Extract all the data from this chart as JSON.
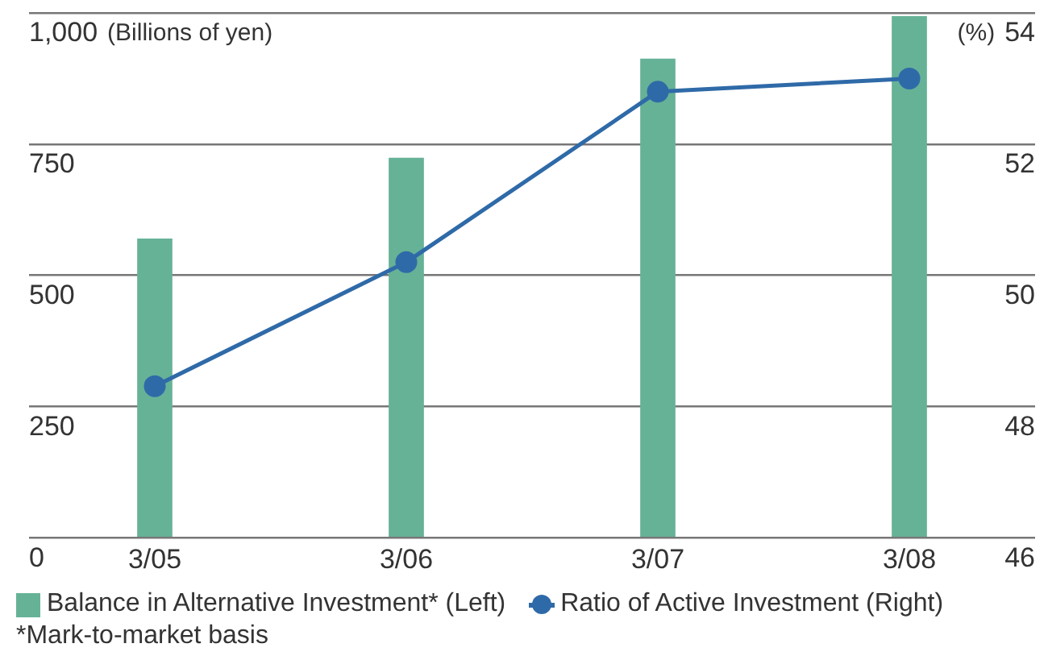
{
  "chart_data": {
    "type": "bar",
    "categories": [
      "3/05",
      "3/06",
      "3/07",
      "3/08"
    ],
    "series": [
      {
        "name": "Balance in Alternative Investment* (Left)",
        "color": "#66b297",
        "values": [
          570,
          724,
          913,
          994
        ]
      },
      {
        "name": "Ratio of Active Investment (Right)",
        "type": "line",
        "axis": "y2",
        "color": "#2f6aa8",
        "values": [
          48.31,
          50.2,
          52.8,
          53.0
        ]
      }
    ],
    "ylabel": "(Billions of yen)",
    "y2label": "(%)",
    "ylim": [
      0,
      1000
    ],
    "yticks": [
      0,
      250,
      500,
      750,
      {
        "value": 1000,
        "label": "1,000"
      }
    ],
    "y2lim": [
      46,
      54
    ],
    "y2ticks": [
      46,
      48,
      50,
      52,
      54
    ],
    "grid": "y",
    "legend": "bottom",
    "marker": "circle",
    "line_style": "solid",
    "annotations": [
      "*Mark-to-market basis"
    ]
  }
}
